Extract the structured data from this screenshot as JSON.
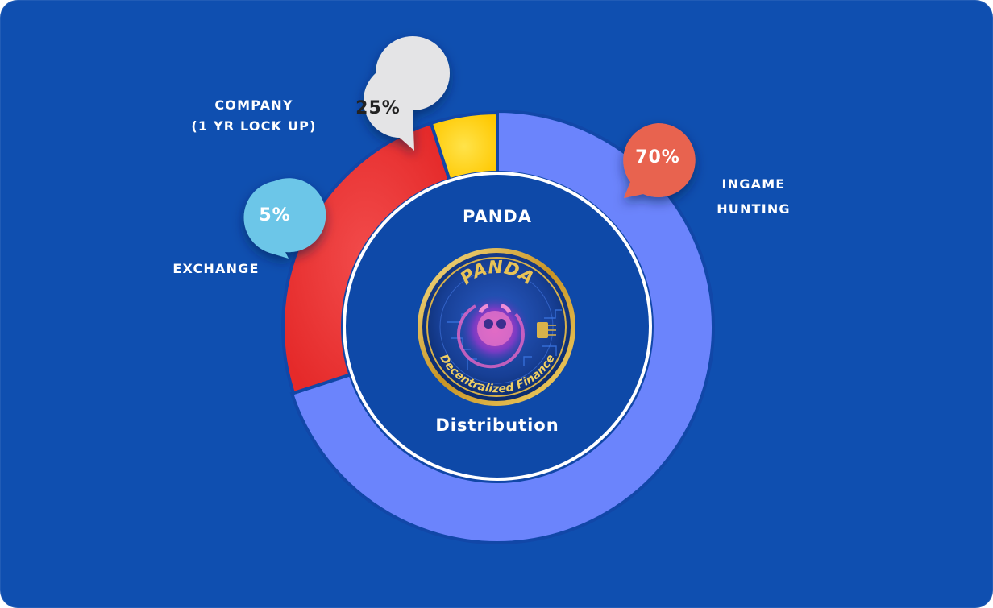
{
  "chart_data": {
    "type": "pie",
    "labels": [
      "INGAME HUNTING",
      "COMPANY (1 YR LOCK UP)",
      "EXCHANGE"
    ],
    "values": [
      70,
      25,
      5
    ],
    "colors": [
      "#6b84fc",
      "#ee3131",
      "#ffd21f"
    ],
    "data_labels": [
      "70%",
      "25%",
      "5%"
    ]
  },
  "center": {
    "title_top": "PANDA",
    "title_bottom": "Distribution",
    "logo_wordmark": "PANDA",
    "logo_tagline": "Decentralized Finance"
  },
  "labels": {
    "ingame_line1": "INGAME",
    "ingame_line2": "HUNTING",
    "company_line1": "COMPANY",
    "company_line2": "(1 YR LOCK UP)",
    "exchange": "EXCHANGE"
  },
  "bubbles": {
    "ingame": {
      "text": "70%",
      "color": "#e8644f"
    },
    "company": {
      "text": "25%",
      "color": "#e4e4e6"
    },
    "exchange": {
      "text": "5%",
      "color": "#6cc6e8"
    }
  },
  "colors": {
    "background": "#0f4fb0",
    "inner_circle": "#0e49a8",
    "ring_divider": "#1147a8"
  }
}
